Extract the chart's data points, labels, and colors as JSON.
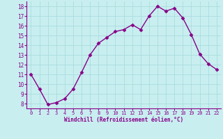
{
  "x": [
    0,
    1,
    2,
    3,
    4,
    5,
    6,
    7,
    8,
    9,
    10,
    11,
    12,
    13,
    14,
    15,
    16,
    17,
    18,
    19,
    20,
    21,
    22
  ],
  "y": [
    11,
    9.5,
    7.9,
    8.1,
    8.5,
    9.5,
    11.2,
    13.0,
    14.2,
    14.8,
    15.4,
    15.6,
    16.1,
    15.6,
    17.0,
    18.0,
    17.5,
    17.8,
    16.8,
    15.1,
    13.1,
    12.1,
    11.5
  ],
  "line_color": "#880088",
  "marker": "D",
  "marker_size": 2.5,
  "linewidth": 1.0,
  "bg_color": "#c8eef0",
  "grid_color": "#aadddd",
  "xlabel": "Windchill (Refroidissement éolien,°C)",
  "xlabel_color": "#880088",
  "tick_color": "#880088",
  "spine_color": "#880088",
  "xlim": [
    -0.5,
    22.5
  ],
  "ylim": [
    7.5,
    18.5
  ],
  "yticks": [
    8,
    9,
    10,
    11,
    12,
    13,
    14,
    15,
    16,
    17,
    18
  ],
  "xticks": [
    0,
    1,
    2,
    3,
    4,
    5,
    6,
    7,
    8,
    9,
    10,
    11,
    12,
    13,
    14,
    15,
    16,
    17,
    18,
    19,
    20,
    21,
    22
  ]
}
